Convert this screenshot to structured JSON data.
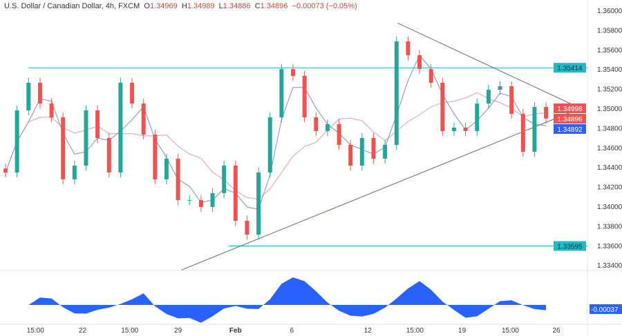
{
  "header": {
    "symbol": "U.S. Dollar / Canadian Dollar, 4h, FXCM",
    "o_label": "O",
    "o": "1.34969",
    "h_label": "H",
    "h": "1.34989",
    "l_label": "L",
    "l": "1.34886",
    "c_label": "C",
    "c": "1.34896",
    "change": "−0.00073 (−0.05%)"
  },
  "chart_data": {
    "type": "candlestick",
    "ylim": [
      1.333,
      1.361
    ],
    "y_ticks": [
      "1.36000",
      "1.35800",
      "1.35600",
      "1.35400",
      "1.35200",
      "1.35000",
      "1.34800",
      "1.34600",
      "1.34400",
      "1.34200",
      "1.34000",
      "1.33800",
      "1.33600",
      "1.33400"
    ],
    "x_ticks": [
      {
        "label": "15:00",
        "bar": 2.6
      },
      {
        "label": "22",
        "bar": 6.7
      },
      {
        "label": "15:00",
        "bar": 10.8
      },
      {
        "label": "29",
        "bar": 15
      },
      {
        "label": "Feb",
        "bar": 20,
        "bold": true
      },
      {
        "label": "6",
        "bar": 24.9
      },
      {
        "label": "12",
        "bar": 31.5
      },
      {
        "label": "15:00",
        "bar": 35.6
      },
      {
        "label": "19",
        "bar": 39.7
      },
      {
        "label": "15:00",
        "bar": 43.9
      },
      {
        "label": "26",
        "bar": 47.9
      }
    ],
    "closes": [
      1.34345,
      1.34979,
      1.35261,
      1.35049,
      1.34908,
      1.34275,
      1.34415,
      1.34979,
      1.34697,
      1.34345,
      1.35261,
      1.35049,
      1.34732,
      1.34275,
      1.34486,
      1.34063,
      1.34063,
      1.33993,
      1.34134,
      1.34415,
      1.33852,
      1.33711,
      1.34345,
      1.34908,
      1.35401,
      1.35331,
      1.34908,
      1.34768,
      1.34838,
      1.34627,
      1.34415,
      1.34697,
      1.34486,
      1.34627,
      1.35683,
      1.35542,
      1.35401,
      1.35261,
      1.34768,
      1.34803,
      1.34768,
      1.35049,
      1.3519,
      1.35225,
      1.34944,
      1.34556,
      1.35014,
      1.34896
    ],
    "colors": {
      "up": "#26a69a",
      "down": "#ef5350",
      "ma_fast": "#7b8fc4",
      "ma_slow": "#e0a0a0",
      "levels": "#22b8c8",
      "trend": "#5d6a8a",
      "osc": "#2962ff"
    },
    "levels": [
      {
        "price": 1.35414,
        "label": "1.35414",
        "from_bar": 2
      },
      {
        "price": 1.33595,
        "label": "1.33595",
        "from_bar": 19.4
      }
    ],
    "trendlines": [
      {
        "from": [
          34.1,
          1.3587
        ],
        "to": [
          50,
          1.35
        ]
      },
      {
        "from": [
          15.3,
          1.3335
        ],
        "to": [
          50,
          1.35
        ]
      }
    ],
    "price_tags": [
      {
        "label": "1.34998",
        "color": "#ef5350",
        "price": 1.34998
      },
      {
        "label": "1.34896",
        "color": "#ef5350",
        "price": 1.34896
      },
      {
        "label": "1.34892",
        "color": "#2962ff",
        "price": 1.34892
      }
    ],
    "oscillator": {
      "label": "-0.00037",
      "value": -0.00037
    }
  }
}
